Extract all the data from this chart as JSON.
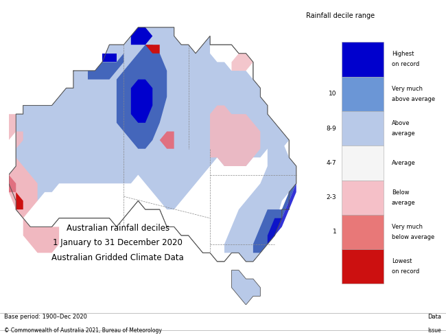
{
  "title_line1": "Australian rainfall deciles",
  "title_line2": "1 January to 31 December 2020",
  "title_line3": "Australian Gridded Climate Data",
  "base_period": "Base period: 1900–Dec 2020",
  "copyright": "© Commonwealth of Australia 2021, Bureau of Meteorology",
  "data_label": "Data",
  "issue_label": "Issue",
  "legend_title": "Rainfall decile range",
  "background_color": "#ffffff",
  "lon_min": 113,
  "lon_max": 154,
  "lat_min": -44,
  "lat_max": -10,
  "legend_colors": [
    "#0000cd",
    "#6b96d6",
    "#b8c9e8",
    "#f5f5f5",
    "#f5c0c8",
    "#e87878",
    "#cc1010"
  ],
  "legend_labels": [
    "Highest\non record",
    "Very much\nabove average",
    "Above\naverage",
    "Average",
    "Below\naverage",
    "Very much\nbelow average",
    "Lowest\non record"
  ],
  "legend_deciles": [
    "",
    "10",
    "8-9",
    "4-7",
    "2-3",
    "1",
    ""
  ]
}
